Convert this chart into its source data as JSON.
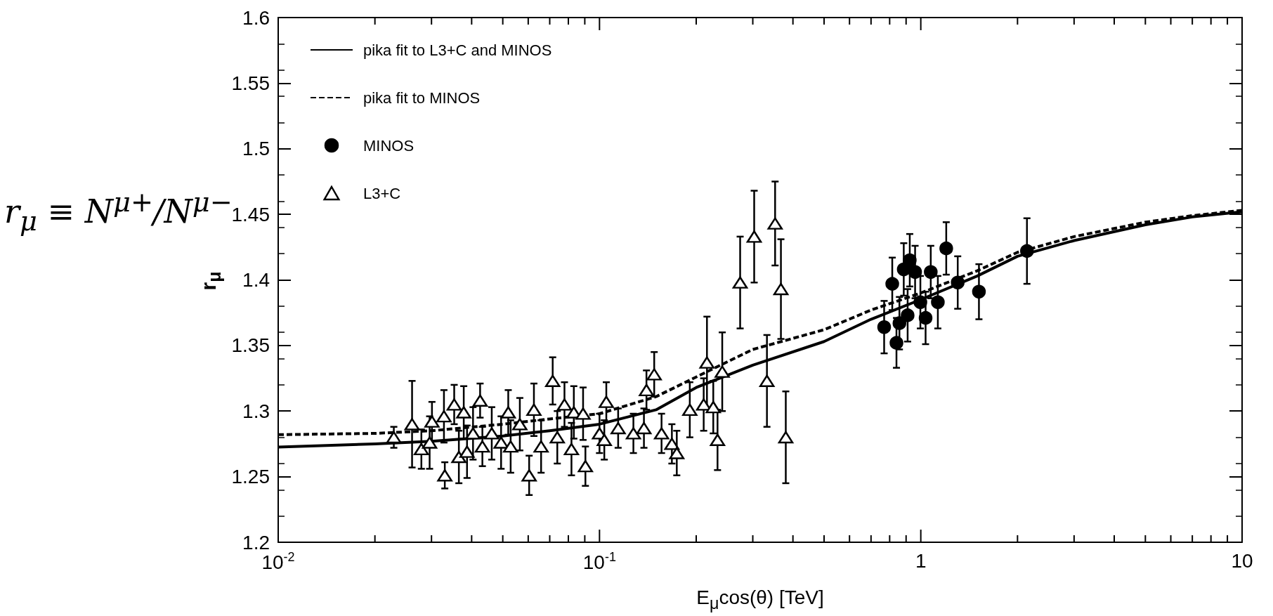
{
  "chart_data": {
    "type": "scatter",
    "xlabel": "E$_{μ}$cos(θ) [TeV]",
    "ylabel": "r$_{μ}$",
    "annotations": [
      "r$_{μ}$ ≡ N$^{μ+}$/N$^{μ−}$"
    ],
    "log": "x",
    "xlim": [
      0.01,
      10
    ],
    "ylim": [
      1.2,
      1.6
    ],
    "xticks": [
      {
        "value": 0.01,
        "label": "10$^{-2}$"
      },
      {
        "value": 0.02,
        "label": null
      },
      {
        "value": 0.03,
        "label": null
      },
      {
        "value": 0.04,
        "label": null
      },
      {
        "value": 0.05,
        "label": null
      },
      {
        "value": 0.06,
        "label": null
      },
      {
        "value": 0.07,
        "label": null
      },
      {
        "value": 0.08,
        "label": null
      },
      {
        "value": 0.09,
        "label": null
      },
      {
        "value": 0.1,
        "label": "10$^{-1}$"
      },
      {
        "value": 0.2,
        "label": null
      },
      {
        "value": 0.3,
        "label": null
      },
      {
        "value": 0.4,
        "label": null
      },
      {
        "value": 0.5,
        "label": null
      },
      {
        "value": 0.6,
        "label": null
      },
      {
        "value": 0.7,
        "label": null
      },
      {
        "value": 0.8,
        "label": null
      },
      {
        "value": 0.9,
        "label": null
      },
      1,
      {
        "value": 2,
        "label": null
      },
      {
        "value": 3,
        "label": null
      },
      {
        "value": 4,
        "label": null
      },
      {
        "value": 5,
        "label": null
      },
      {
        "value": 6,
        "label": null
      },
      {
        "value": 7,
        "label": null
      },
      {
        "value": 8,
        "label": null
      },
      {
        "value": 9,
        "label": null
      },
      10
    ],
    "yticks": [
      1.2,
      1.25,
      1.3,
      1.35,
      1.4,
      1.45,
      1.5,
      1.55,
      1.6
    ],
    "grid": false,
    "legend": "top left",
    "series": [
      {
        "name": "pika fit to L3+C and MINOS",
        "type": "line",
        "color": "#000000",
        "marker": "none",
        "line_style": "solid",
        "x": [
          0.01,
          0.02,
          0.03,
          0.05,
          0.07,
          0.1,
          0.15,
          0.2,
          0.3,
          0.5,
          0.7,
          1,
          1.5,
          2,
          3,
          5,
          7,
          10
        ],
        "values": [
          1.2725,
          1.275,
          1.277,
          1.281,
          1.285,
          1.29,
          1.301,
          1.318,
          1.335,
          1.353,
          1.37,
          1.385,
          1.403,
          1.418,
          1.43,
          1.442,
          1.448,
          1.452
        ]
      },
      {
        "name": "pika fit to MINOS",
        "type": "line",
        "color": "#000000",
        "marker": "none",
        "line_style": "dashed",
        "x": [
          0.01,
          0.02,
          0.03,
          0.05,
          0.07,
          0.1,
          0.15,
          0.2,
          0.3,
          0.5,
          0.7,
          1,
          1.5,
          2,
          3,
          5,
          7,
          10
        ],
        "values": [
          1.282,
          1.283,
          1.285,
          1.29,
          1.294,
          1.298,
          1.311,
          1.326,
          1.347,
          1.362,
          1.377,
          1.39,
          1.407,
          1.421,
          1.433,
          1.444,
          1.449,
          1.453
        ]
      },
      {
        "name": "MINOS",
        "color": "#000000",
        "marker": "circle",
        "x": [
          0.769,
          0.815,
          0.84,
          0.858,
          0.885,
          0.91,
          0.924,
          0.96,
          0.98,
          0.997,
          1.035,
          1.074,
          1.13,
          1.2,
          1.303,
          1.517,
          2.14
        ],
        "values": [
          1.364,
          1.397,
          1.352,
          1.367,
          1.408,
          1.373,
          1.415,
          1.406,
          null,
          1.383,
          1.371,
          1.406,
          1.383,
          1.424,
          1.398,
          1.391,
          1.422
        ],
        "errors": [
          0.02,
          0.02,
          0.019,
          0.02,
          0.02,
          0.02,
          0.02,
          0.02,
          null,
          0.02,
          0.02,
          0.02,
          0.02,
          0.02,
          0.02,
          0.021,
          0.025
        ]
      },
      {
        "name": "L3+C",
        "color": "#000000",
        "marker": "triangle",
        "x": [
          0.0229,
          0.0261,
          0.0279,
          0.0296,
          0.0301,
          0.033,
          0.0328,
          0.0353,
          0.0365,
          0.0378,
          0.0387,
          0.0404,
          0.0425,
          0.0432,
          0.0462,
          0.0494,
          0.052,
          0.0529,
          0.0565,
          0.0604,
          0.0625,
          0.0658,
          0.0715,
          0.0739,
          0.0778,
          0.0832,
          0.0818,
          0.0904,
          0.0889,
          0.1,
          0.1035,
          0.105,
          0.1143,
          0.1275,
          0.1375,
          0.14,
          0.148,
          0.156,
          0.168,
          0.174,
          0.191,
          0.211,
          0.216,
          0.226,
          0.233,
          0.241,
          0.274,
          0.303,
          0.332,
          0.352,
          0.367,
          0.38
        ],
        "values": [
          1.28,
          1.29,
          1.271,
          1.276,
          1.292,
          1.251,
          1.296,
          1.305,
          1.265,
          1.299,
          1.269,
          1.283,
          1.308,
          1.273,
          1.283,
          1.276,
          1.299,
          1.273,
          1.29,
          1.251,
          1.301,
          1.273,
          1.323,
          1.28,
          1.305,
          1.299,
          1.271,
          1.258,
          1.298,
          1.283,
          1.278,
          1.307,
          1.287,
          1.283,
          1.287,
          1.316,
          1.328,
          1.283,
          1.275,
          1.268,
          1.301,
          1.305,
          1.337,
          1.303,
          1.278,
          1.33,
          1.398,
          1.433,
          1.323,
          1.443,
          1.393,
          1.28
        ],
        "errors": [
          0.008,
          0.033,
          0.015,
          0.02,
          0.015,
          0.01,
          0.02,
          0.015,
          0.02,
          0.02,
          0.02,
          0.02,
          0.013,
          0.015,
          0.02,
          0.02,
          0.017,
          0.02,
          0.02,
          0.015,
          0.02,
          0.02,
          0.018,
          0.02,
          0.017,
          0.02,
          0.02,
          0.015,
          0.02,
          0.015,
          0.015,
          0.015,
          0.015,
          0.015,
          0.015,
          0.015,
          0.017,
          0.015,
          0.015,
          0.017,
          0.021,
          0.02,
          0.035,
          0.02,
          0.023,
          0.03,
          0.035,
          0.035,
          0.035,
          0.032,
          0.038,
          0.035
        ]
      }
    ]
  }
}
